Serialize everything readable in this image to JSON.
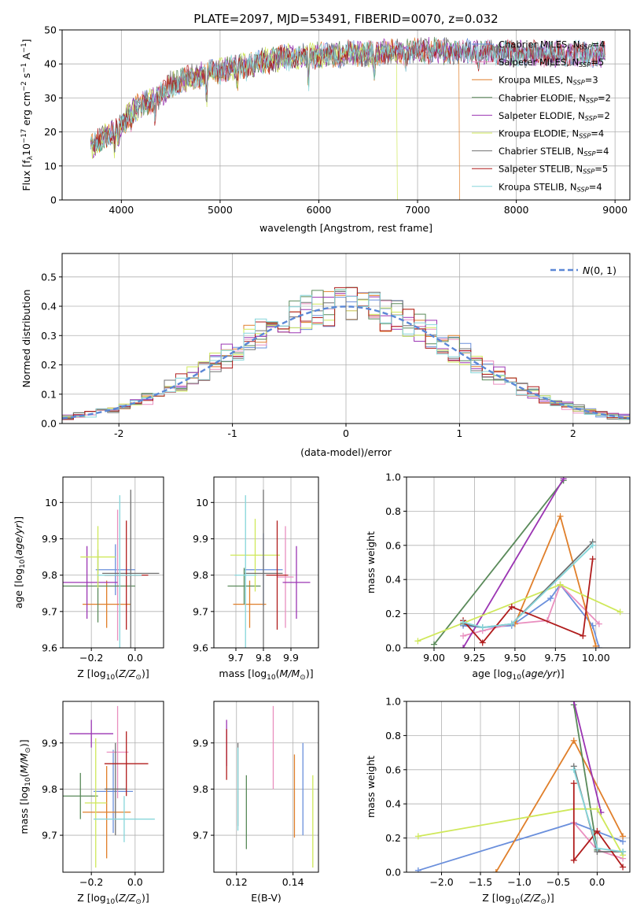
{
  "figure_title": "PLATE=2097, MJD=53491, FIBERID=0070, z=0.032",
  "colors": {
    "Chabrier MILES": "#6a8fdc",
    "Salpeter MILES": "#e98fbf",
    "Kroupa MILES": "#e07f2a",
    "Chabrier ELODIE": "#5a8a5a",
    "Salpeter ELODIE": "#9b35b3",
    "Kroupa ELODIE": "#cfe85a",
    "Chabrier STELIB": "#707070",
    "Salpeter STELIB": "#b01c1c",
    "Kroupa STELIB": "#86d6da",
    "gaussian": "#5b87d6"
  },
  "chart_data": [
    {
      "id": "spectrum",
      "type": "line",
      "xlabel": "wavelength [Angstrom, rest frame]",
      "ylabel": "Flux [f_λ 10^-17 erg cm^-2 s^-1 A^-1]",
      "xlim": [
        3400,
        9150
      ],
      "ylim": [
        0,
        50
      ],
      "xticks": [
        4000,
        5000,
        6000,
        7000,
        8000,
        9000
      ],
      "yticks": [
        0,
        10,
        20,
        30,
        40,
        50
      ],
      "legend": "top-right",
      "series": [
        {
          "name": "Chabrier MILES",
          "n_ssp": 4
        },
        {
          "name": "Salpeter MILES",
          "n_ssp": 5
        },
        {
          "name": "Kroupa MILES",
          "n_ssp": 3,
          "cutoff": 7420
        },
        {
          "name": "Chabrier ELODIE",
          "n_ssp": 2
        },
        {
          "name": "Salpeter ELODIE",
          "n_ssp": 2
        },
        {
          "name": "Kroupa ELODIE",
          "n_ssp": 4,
          "cutoff": 6790
        },
        {
          "name": "Chabrier STELIB",
          "n_ssp": 4
        },
        {
          "name": "Salpeter STELIB",
          "n_ssp": 5
        },
        {
          "name": "Kroupa STELIB",
          "n_ssp": 4
        }
      ],
      "continuum": {
        "x": [
          3690,
          3800,
          3900,
          4000,
          4100,
          4200,
          4300,
          4400,
          4500,
          4700,
          4900,
          5100,
          5300,
          5500,
          5700,
          5900,
          6100,
          6300,
          6500,
          6700,
          6900,
          7100,
          7400,
          7700,
          8000,
          8300,
          8600,
          8900
        ],
        "y": [
          15,
          18,
          20,
          22,
          26,
          28,
          29,
          31,
          34,
          36,
          37.5,
          38.5,
          40,
          41,
          42,
          42.5,
          42.5,
          43,
          43,
          43.5,
          43.5,
          44,
          43.5,
          43.5,
          43,
          43,
          43,
          43
        ]
      }
    },
    {
      "id": "residuals",
      "type": "bar",
      "xlabel": "(data-model)/error",
      "ylabel": "Normed distribution",
      "xlim": [
        -2.5,
        2.5
      ],
      "ylim": [
        0,
        0.58
      ],
      "xticks": [
        -2,
        -1,
        0,
        1,
        2
      ],
      "yticks": [
        0.0,
        0.1,
        0.2,
        0.3,
        0.4,
        0.5
      ],
      "legend": "top-right",
      "legend_label": "N(0,1)",
      "bin_width": 0.1
    },
    {
      "id": "age_vs_Z",
      "type": "scatter",
      "xlabel": "Z [log10(Z/Z⊙)]",
      "ylabel": "age [log10(age/yr)]",
      "xlim": [
        -0.33,
        0.13
      ],
      "ylim": [
        9.6,
        10.07
      ],
      "xticks": [
        -0.2,
        0.0
      ],
      "xtick_labels": [
        "−0.2",
        "0.0"
      ],
      "yticks": [
        9.6,
        9.7,
        9.8,
        9.9,
        10.0
      ],
      "points": [
        {
          "series": "Chabrier MILES",
          "x": -0.09,
          "xerr": 0.09,
          "y": 9.815,
          "yerr": 0.07
        },
        {
          "series": "Salpeter MILES",
          "x": -0.08,
          "xerr": 0.05,
          "y": 9.8,
          "yerr": 0.18
        },
        {
          "series": "Kroupa MILES",
          "x": -0.13,
          "xerr": 0.11,
          "y": 9.72,
          "yerr": 0.065
        },
        {
          "series": "Chabrier ELODIE",
          "x": -0.17,
          "xerr": 0.17,
          "y": 9.77,
          "yerr": 0.1
        },
        {
          "series": "Salpeter ELODIE",
          "x": -0.22,
          "xerr": 0.14,
          "y": 9.78,
          "yerr": 0.1
        },
        {
          "series": "Kroupa ELODIE",
          "x": -0.17,
          "xerr": 0.08,
          "y": 9.85,
          "yerr": 0.085
        },
        {
          "series": "Chabrier STELIB",
          "x": -0.02,
          "xerr": 0.13,
          "y": 9.805,
          "yerr": 0.23
        },
        {
          "series": "Salpeter STELIB",
          "x": -0.04,
          "xerr": 0.1,
          "y": 9.8,
          "yerr": 0.15
        },
        {
          "series": "Kroupa STELIB",
          "x": -0.07,
          "xerr": 0.1,
          "y": 9.8,
          "yerr": 0.22
        }
      ]
    },
    {
      "id": "age_vs_mass",
      "type": "scatter",
      "xlabel": "mass [log10(M/M⊙)]",
      "ylabel": "",
      "xlim": [
        9.62,
        10.0
      ],
      "ylim": [
        9.6,
        10.07
      ],
      "xticks": [
        9.7,
        9.8,
        9.9
      ],
      "yticks": [
        9.6,
        9.7,
        9.8,
        9.9,
        10.0
      ],
      "points": [
        {
          "series": "Chabrier MILES",
          "x": 9.8,
          "xerr": 0.07,
          "y": 9.815,
          "yerr": 0.1
        },
        {
          "series": "Salpeter MILES",
          "x": 9.88,
          "xerr": 0.03,
          "y": 9.795,
          "yerr": 0.14
        },
        {
          "series": "Kroupa MILES",
          "x": 9.75,
          "xerr": 0.06,
          "y": 9.72,
          "yerr": 0.065
        },
        {
          "series": "Chabrier ELODIE",
          "x": 9.73,
          "xerr": 0.06,
          "y": 9.77,
          "yerr": 0.05
        },
        {
          "series": "Salpeter ELODIE",
          "x": 9.92,
          "xerr": 0.05,
          "y": 9.78,
          "yerr": 0.1
        },
        {
          "series": "Kroupa ELODIE",
          "x": 9.77,
          "xerr": 0.09,
          "y": 9.855,
          "yerr": 0.1
        },
        {
          "series": "Chabrier STELIB",
          "x": 9.8,
          "xerr": 0.07,
          "y": 9.805,
          "yerr": 0.23
        },
        {
          "series": "Salpeter STELIB",
          "x": 9.85,
          "xerr": 0.04,
          "y": 9.8,
          "yerr": 0.15
        },
        {
          "series": "Kroupa STELIB",
          "x": 9.735,
          "xerr": 0.04,
          "y": 9.8,
          "yerr": 0.22
        }
      ]
    },
    {
      "id": "weights_vs_age",
      "type": "line",
      "xlabel": "age [log10(age/yr)]",
      "ylabel": "mass weight",
      "xlim": [
        8.83,
        10.21
      ],
      "ylim": [
        0,
        1.0
      ],
      "xticks": [
        9.0,
        9.25,
        9.5,
        9.75,
        10.0
      ],
      "xtick_labels": [
        "9.00",
        "9.25",
        "9.50",
        "9.75",
        "10.00"
      ],
      "yticks": [
        0.0,
        0.2,
        0.4,
        0.6,
        0.8,
        1.0
      ],
      "series": [
        {
          "name": "Chabrier MILES",
          "x": [
            9.18,
            9.3,
            9.48,
            9.72,
            9.78,
            9.98,
            10.02
          ],
          "y": [
            0.13,
            0.12,
            0.13,
            0.29,
            0.37,
            0.13,
            0.0
          ]
        },
        {
          "name": "Salpeter MILES",
          "x": [
            9.18,
            9.3,
            9.48,
            9.7,
            9.78,
            10.02
          ],
          "y": [
            0.07,
            0.1,
            0.14,
            0.16,
            0.37,
            0.14
          ]
        },
        {
          "name": "Kroupa MILES",
          "x": [
            9.5,
            9.78,
            10.0
          ],
          "y": [
            0.14,
            0.77,
            0.01
          ]
        },
        {
          "name": "Chabrier ELODIE",
          "x": [
            9.0,
            9.8
          ],
          "y": [
            0.02,
            0.98
          ]
        },
        {
          "name": "Salpeter ELODIE",
          "x": [
            9.18,
            9.8
          ],
          "y": [
            0.0,
            0.99
          ]
        },
        {
          "name": "Kroupa ELODIE",
          "x": [
            8.9,
            9.78,
            10.15
          ],
          "y": [
            0.04,
            0.37,
            0.21
          ]
        },
        {
          "name": "Chabrier STELIB",
          "x": [
            9.18,
            9.3,
            9.48,
            9.98
          ],
          "y": [
            0.14,
            0.12,
            0.14,
            0.62
          ]
        },
        {
          "name": "Salpeter STELIB",
          "x": [
            9.18,
            9.3,
            9.48,
            9.92,
            9.98
          ],
          "y": [
            0.16,
            0.03,
            0.24,
            0.07,
            0.52
          ]
        },
        {
          "name": "Kroupa STELIB",
          "x": [
            9.18,
            9.3,
            9.48,
            9.98
          ],
          "y": [
            0.15,
            0.12,
            0.14,
            0.6
          ]
        }
      ]
    },
    {
      "id": "mass_vs_Z",
      "type": "scatter",
      "xlabel": "Z [log10(Z/Z⊙)]",
      "ylabel": "mass [log10(M/M⊙)]",
      "xlim": [
        -0.33,
        0.13
      ],
      "ylim": [
        9.62,
        9.99
      ],
      "xticks": [
        -0.2,
        0.0
      ],
      "xtick_labels": [
        "−0.2",
        "0.0"
      ],
      "yticks": [
        9.7,
        9.8,
        9.9
      ],
      "points": [
        {
          "series": "Chabrier MILES",
          "x": -0.1,
          "xerr": 0.09,
          "y": 9.795,
          "yerr": 0.09
        },
        {
          "series": "Salpeter MILES",
          "x": -0.08,
          "xerr": 0.05,
          "y": 9.88,
          "yerr": 0.1
        },
        {
          "series": "Kroupa MILES",
          "x": -0.13,
          "xerr": 0.11,
          "y": 9.75,
          "yerr": 0.1
        },
        {
          "series": "Chabrier ELODIE",
          "x": -0.25,
          "xerr": 0.08,
          "y": 9.785,
          "yerr": 0.05
        },
        {
          "series": "Salpeter ELODIE",
          "x": -0.2,
          "xerr": 0.1,
          "y": 9.92,
          "yerr": 0.03
        },
        {
          "series": "Kroupa ELODIE",
          "x": -0.18,
          "xerr": 0.05,
          "y": 9.77,
          "yerr": 0.14
        },
        {
          "series": "Chabrier STELIB",
          "x": -0.09,
          "xerr": 0.05,
          "y": 9.8,
          "yerr": 0.1
        },
        {
          "series": "Salpeter STELIB",
          "x": -0.04,
          "xerr": 0.1,
          "y": 9.855,
          "yerr": 0.07
        },
        {
          "series": "Kroupa STELIB",
          "x": -0.05,
          "xerr": 0.14,
          "y": 9.735,
          "yerr": 0.05
        }
      ]
    },
    {
      "id": "mass_vs_ebv",
      "type": "scatter",
      "xlabel": "E(B-V)",
      "ylabel": "",
      "xlim": [
        0.112,
        0.149
      ],
      "ylim": [
        9.62,
        9.99
      ],
      "xticks": [
        0.12,
        0.14
      ],
      "yticks": [
        9.7,
        9.8,
        9.9
      ],
      "points": [
        {
          "series": "Chabrier MILES",
          "x": 0.1435,
          "xerr": 0,
          "y": 9.8,
          "yerr": 0.1
        },
        {
          "series": "Salpeter MILES",
          "x": 0.133,
          "xerr": 0,
          "y": 9.89,
          "yerr": 0.09
        },
        {
          "series": "Kroupa MILES",
          "x": 0.1405,
          "xerr": 0,
          "y": 9.785,
          "yerr": 0.09
        },
        {
          "series": "Chabrier ELODIE",
          "x": 0.1235,
          "xerr": 0,
          "y": 9.75,
          "yerr": 0.08
        },
        {
          "series": "Salpeter ELODIE",
          "x": 0.1165,
          "xerr": 0,
          "y": 9.9,
          "yerr": 0.05
        },
        {
          "series": "Kroupa ELODIE",
          "x": 0.147,
          "xerr": 0,
          "y": 9.73,
          "yerr": 0.1
        },
        {
          "series": "Chabrier STELIB",
          "x": 0.1205,
          "xerr": 0,
          "y": 9.81,
          "yerr": 0.09
        },
        {
          "series": "Salpeter STELIB",
          "x": 0.1165,
          "xerr": 0,
          "y": 9.875,
          "yerr": 0.055
        },
        {
          "series": "Kroupa STELIB",
          "x": 0.1205,
          "xerr": 0,
          "y": 9.8,
          "yerr": 0.09
        }
      ]
    },
    {
      "id": "weights_vs_Z",
      "type": "line",
      "xlabel": "Z [log10(Z/Z⊙)]",
      "ylabel": "mass weight",
      "xlim": [
        -2.45,
        0.42
      ],
      "ylim": [
        0,
        1.0
      ],
      "xticks": [
        -2.0,
        -1.5,
        -1.0,
        -0.5,
        0.0
      ],
      "xtick_labels": [
        "−2.0",
        "−1.5",
        "−1.0",
        "−0.5",
        "0.0"
      ],
      "yticks": [
        0.0,
        0.2,
        0.4,
        0.6,
        0.8,
        1.0
      ],
      "series": [
        {
          "name": "Chabrier MILES",
          "x": [
            -2.3,
            -0.3,
            0.33
          ],
          "y": [
            0.01,
            0.29,
            0.18
          ]
        },
        {
          "name": "Salpeter MILES",
          "x": [
            -0.3,
            0.0,
            0.33
          ],
          "y": [
            0.29,
            0.13,
            0.08
          ]
        },
        {
          "name": "Kroupa MILES",
          "x": [
            -1.3,
            -0.3,
            0.33
          ],
          "y": [
            0.0,
            0.77,
            0.21
          ]
        },
        {
          "name": "Chabrier ELODIE",
          "x": [
            -0.3,
            0.0
          ],
          "y": [
            0.98,
            0.13
          ]
        },
        {
          "name": "Salpeter ELODIE",
          "x": [
            -0.3,
            0.05
          ],
          "y": [
            1.0,
            0.35
          ]
        },
        {
          "name": "Kroupa ELODIE",
          "x": [
            -2.3,
            -0.3,
            0.0,
            0.33
          ],
          "y": [
            0.21,
            0.37,
            0.37,
            0.1
          ]
        },
        {
          "name": "Chabrier STELIB",
          "x": [
            -0.3,
            0.0,
            0.33
          ],
          "y": [
            0.62,
            0.12,
            0.12
          ]
        },
        {
          "name": "Salpeter STELIB",
          "x": [
            -0.3,
            -0.3,
            0.0,
            0.33
          ],
          "y": [
            0.52,
            0.07,
            0.24,
            0.03
          ]
        },
        {
          "name": "Kroupa STELIB",
          "x": [
            -0.3,
            0.0,
            0.33
          ],
          "y": [
            0.6,
            0.14,
            0.12
          ]
        }
      ]
    }
  ]
}
